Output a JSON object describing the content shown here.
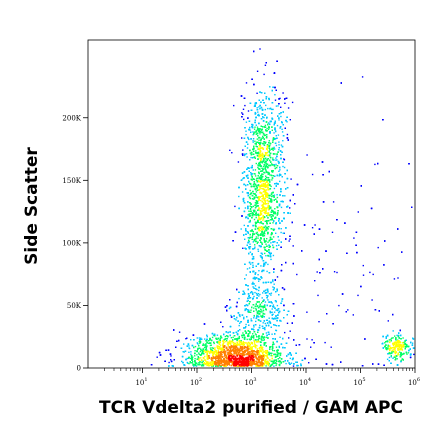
{
  "chart_data": {
    "type": "scatter",
    "subtype": "flow-cytometry-density-dot-plot",
    "xlabel": "TCR Vdelta2 purified / GAM APC",
    "ylabel": "Side Scatter",
    "x_scale": "log",
    "y_scale": "linear",
    "xlim": [
      1,
      1000000
    ],
    "ylim": [
      0,
      262144
    ],
    "x_ticks": [
      {
        "value": 10,
        "base": "10",
        "exp": "1"
      },
      {
        "value": 100,
        "base": "10",
        "exp": "2"
      },
      {
        "value": 1000,
        "base": "10",
        "exp": "3"
      },
      {
        "value": 10000,
        "base": "10",
        "exp": "4"
      },
      {
        "value": 100000,
        "base": "10",
        "exp": "5"
      },
      {
        "value": 1000000,
        "base": "10",
        "exp": "6"
      }
    ],
    "y_ticks": [
      {
        "value": 0,
        "label": "0"
      },
      {
        "value": 50000,
        "label": "50K"
      },
      {
        "value": 100000,
        "label": "100K"
      },
      {
        "value": 150000,
        "label": "150K"
      },
      {
        "value": 200000,
        "label": "200K"
      }
    ],
    "grid": false,
    "colormap": [
      "#0000ff",
      "#00c8ff",
      "#00ff64",
      "#ffff00",
      "#ff8000",
      "#ff0000"
    ],
    "populations": [
      {
        "name": "",
        "x_center": 560,
        "y_center": 10000,
        "x_spread_decades": 0.42,
        "y_spread": 9000,
        "weight": 0.36
      },
      {
        "name": "",
        "x_center": 1550,
        "y_center": 137000,
        "x_spread_decades": 0.18,
        "y_spread": 30000,
        "weight": 0.3
      },
      {
        "name": "",
        "x_center": 1300,
        "y_center": 45000,
        "x_spread_decades": 0.25,
        "y_spread": 14000,
        "weight": 0.11
      },
      {
        "name": "",
        "x_center": 1700,
        "y_center": 190000,
        "x_spread_decades": 0.2,
        "y_spread": 20000,
        "weight": 0.08
      },
      {
        "name": "",
        "x_center": 450000,
        "y_center": 17000,
        "x_spread_decades": 0.12,
        "y_spread": 5000,
        "weight": 0.05
      },
      {
        "name": "",
        "x_center": 30000,
        "y_center": 90000,
        "x_spread_decades": 0.9,
        "y_spread": 60000,
        "weight": 0.03
      },
      {
        "name": "",
        "x_center": 200,
        "y_center": 12000,
        "x_spread_decades": 0.5,
        "y_spread": 8000,
        "weight": 0.07
      }
    ]
  }
}
